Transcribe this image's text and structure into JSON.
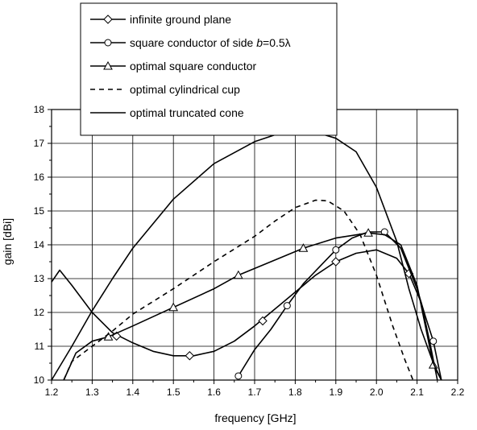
{
  "chart_data": {
    "type": "line",
    "xlabel": "frequency [GHz]",
    "ylabel": "gain [dBi]",
    "xlim": [
      1.2,
      2.2
    ],
    "ylim": [
      10,
      18
    ],
    "x_ticks": [
      "1.2",
      "1.3",
      "1.4",
      "1.5",
      "1.6",
      "1.7",
      "1.8",
      "1.9",
      "2.0",
      "2.1",
      "2.2"
    ],
    "y_ticks": [
      "10",
      "11",
      "12",
      "13",
      "14",
      "15",
      "16",
      "17",
      "18"
    ],
    "grid": true,
    "legend_position": "top-left",
    "series": [
      {
        "name": "infinite ground plane",
        "marker": "diamond",
        "line": "solid",
        "x": [
          1.2,
          1.22,
          1.25,
          1.3,
          1.35,
          1.4,
          1.45,
          1.5,
          1.55,
          1.6,
          1.65,
          1.7,
          1.75,
          1.8,
          1.85,
          1.9,
          1.95,
          2.0,
          2.05,
          2.08,
          2.11,
          2.13,
          2.15
        ],
        "y": [
          12.9,
          13.25,
          12.8,
          12.0,
          11.4,
          11.1,
          10.85,
          10.72,
          10.72,
          10.85,
          11.15,
          11.6,
          12.1,
          12.6,
          13.1,
          13.5,
          13.75,
          13.85,
          13.6,
          13.15,
          12.3,
          11.2,
          10.0
        ],
        "marker_x": [
          1.36,
          1.54,
          1.72,
          1.9,
          2.08
        ],
        "marker_y": [
          11.3,
          10.72,
          11.75,
          13.5,
          13.15
        ]
      },
      {
        "name": "square conductor of side b=0.5λ",
        "name_prefix": "square conductor of side ",
        "name_var": "b",
        "name_suffix": "=0.5λ",
        "marker": "circle",
        "line": "solid",
        "x": [
          1.66,
          1.7,
          1.74,
          1.78,
          1.82,
          1.86,
          1.9,
          1.94,
          1.98,
          2.02,
          2.06,
          2.1,
          2.12,
          2.14,
          2.16
        ],
        "y": [
          10.12,
          10.9,
          11.5,
          12.2,
          12.85,
          13.35,
          13.85,
          14.2,
          14.38,
          14.38,
          13.9,
          12.7,
          11.9,
          11.15,
          10.0
        ],
        "marker_x": [
          1.66,
          1.78,
          1.9,
          2.02,
          2.14
        ],
        "marker_y": [
          10.12,
          12.2,
          13.85,
          14.38,
          11.15
        ]
      },
      {
        "name": "optimal square conductor",
        "marker": "triangle",
        "line": "solid",
        "x": [
          1.23,
          1.26,
          1.3,
          1.34,
          1.4,
          1.5,
          1.6,
          1.66,
          1.74,
          1.82,
          1.9,
          1.98,
          2.02,
          2.06,
          2.1,
          2.14,
          2.16
        ],
        "y": [
          10.0,
          10.8,
          11.15,
          11.28,
          11.6,
          12.15,
          12.7,
          13.1,
          13.5,
          13.9,
          14.2,
          14.35,
          14.3,
          14.0,
          12.8,
          10.45,
          10.0
        ],
        "marker_x": [
          1.34,
          1.5,
          1.66,
          1.82,
          1.98,
          2.14
        ],
        "marker_y": [
          11.28,
          12.15,
          13.1,
          13.9,
          14.35,
          10.45
        ]
      },
      {
        "name": "optimal cylindrical cup",
        "marker": "none",
        "line": "dashed",
        "x": [
          1.23,
          1.25,
          1.3,
          1.35,
          1.4,
          1.5,
          1.6,
          1.7,
          1.75,
          1.8,
          1.85,
          1.88,
          1.92,
          1.96,
          2.0,
          2.04,
          2.07,
          2.09
        ],
        "y": [
          10.0,
          10.55,
          11.0,
          11.45,
          11.95,
          12.7,
          13.5,
          14.25,
          14.7,
          15.1,
          15.32,
          15.3,
          15.0,
          14.3,
          13.1,
          11.6,
          10.6,
          10.0
        ],
        "marker_x": [],
        "marker_y": []
      },
      {
        "name": "optimal truncated cone",
        "marker": "none",
        "line": "solid",
        "x": [
          1.2,
          1.25,
          1.3,
          1.35,
          1.4,
          1.5,
          1.6,
          1.7,
          1.75,
          1.8,
          1.85,
          1.9,
          1.95,
          2.0,
          2.05,
          2.08,
          2.11,
          2.14,
          2.16
        ],
        "y": [
          10.0,
          11.0,
          12.05,
          13.0,
          13.9,
          15.35,
          16.4,
          17.05,
          17.25,
          17.33,
          17.33,
          17.15,
          16.75,
          15.7,
          14.1,
          12.7,
          11.5,
          10.5,
          10.0
        ],
        "marker_x": [],
        "marker_y": []
      }
    ]
  }
}
